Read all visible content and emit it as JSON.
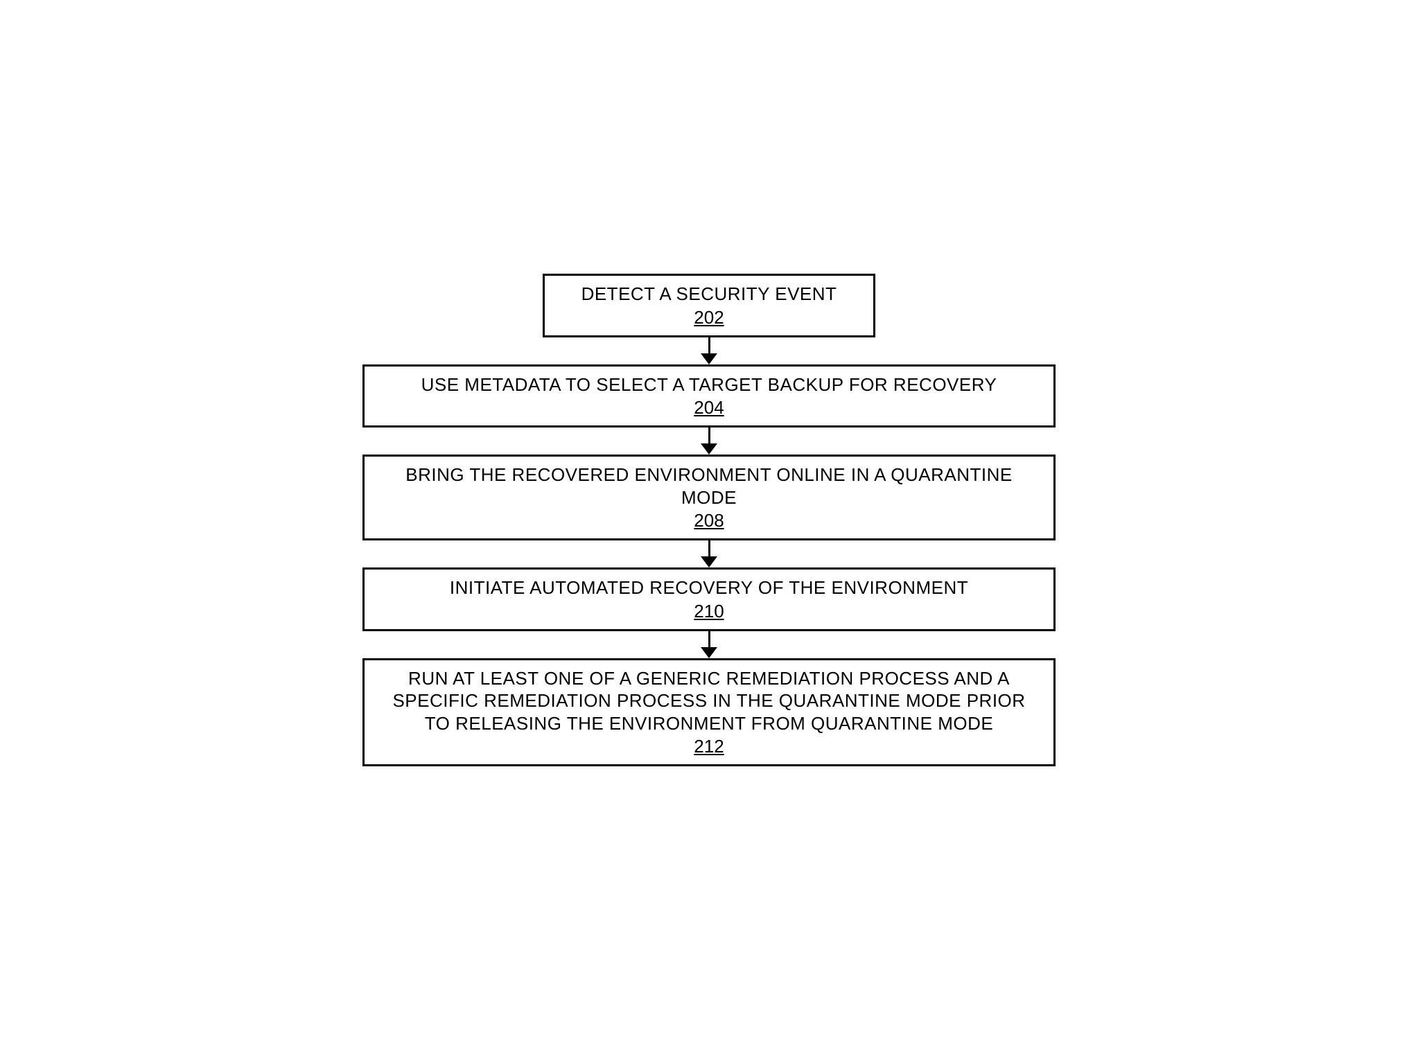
{
  "flowchart": {
    "type": "flowchart",
    "background_color": "#ffffff",
    "box_border_color": "#000000",
    "box_border_width": 3,
    "text_color": "#000000",
    "font_family": "Arial",
    "text_fontsize": 26,
    "number_fontsize": 26,
    "arrow_color": "#000000",
    "arrow_shaft_width": 3,
    "arrow_shaft_height": 24,
    "arrow_head_width": 24,
    "arrow_head_height": 16,
    "narrow_width": 480,
    "wide_width": 1000,
    "nodes": [
      {
        "id": "step1",
        "text": "DETECT A SECURITY EVENT",
        "number": "202",
        "width": "narrow"
      },
      {
        "id": "step2",
        "text": "USE METADATA TO SELECT A TARGET BACKUP FOR RECOVERY",
        "number": "204",
        "width": "wide"
      },
      {
        "id": "step3",
        "text": "BRING THE RECOVERED ENVIRONMENT ONLINE IN A QUARANTINE MODE",
        "number": "208",
        "width": "wide"
      },
      {
        "id": "step4",
        "text": "INITIATE AUTOMATED RECOVERY OF THE ENVIRONMENT",
        "number": "210",
        "width": "wide"
      },
      {
        "id": "step5",
        "text": "RUN AT LEAST ONE OF A GENERIC REMEDIATION PROCESS AND A SPECIFIC REMEDIATION PROCESS IN THE QUARANTINE MODE PRIOR TO RELEASING THE ENVIRONMENT FROM QUARANTINE MODE",
        "number": "212",
        "width": "wide"
      }
    ],
    "edges": [
      {
        "from": "step1",
        "to": "step2"
      },
      {
        "from": "step2",
        "to": "step3"
      },
      {
        "from": "step3",
        "to": "step4"
      },
      {
        "from": "step4",
        "to": "step5"
      }
    ]
  }
}
